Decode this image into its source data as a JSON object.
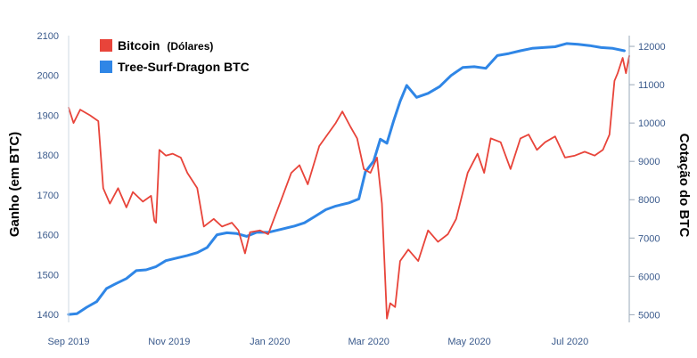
{
  "chart_data": {
    "type": "line",
    "title": "",
    "legend": {
      "placement": "top-left",
      "entries": [
        {
          "label": "Bitcoin",
          "sub": "(Dólares)",
          "color": "#e8443a"
        },
        {
          "label": "Tree-Surf-Dragon BTC",
          "sub": "",
          "color": "#2f86e6"
        }
      ]
    },
    "y_left": {
      "label": "Ganho (em BTC)",
      "range": [
        1380,
        2100
      ],
      "ticks": [
        "1400",
        "1500",
        "1600",
        "1700",
        "1800",
        "1900",
        "2000",
        "2100"
      ]
    },
    "y_right": {
      "label": "Cotação do BTC",
      "range": [
        4800,
        12280
      ],
      "ticks": [
        "5000",
        "6000",
        "7000",
        "8000",
        "9000",
        "10000",
        "11000",
        "12000"
      ]
    },
    "x_axis": {
      "range": [
        "2019-09-01",
        "2020-08-06"
      ],
      "ticks": [
        {
          "date": "2019-09-01",
          "label": "Sep 2019"
        },
        {
          "date": "2019-11-01",
          "label": "Nov 2019"
        },
        {
          "date": "2020-01-01",
          "label": "Jan 2020"
        },
        {
          "date": "2020-03-01",
          "label": "Mar 2020"
        },
        {
          "date": "2020-05-01",
          "label": "May 2020"
        },
        {
          "date": "2020-07-01",
          "label": "Jul 2020"
        }
      ]
    },
    "grid": false,
    "series": [
      {
        "name": "Tree-Surf-Dragon BTC",
        "axis": "left",
        "color": "#2f86e6",
        "points": [
          [
            "2019-09-01",
            1400
          ],
          [
            "2019-09-06",
            1402
          ],
          [
            "2019-09-12",
            1418
          ],
          [
            "2019-09-18",
            1432
          ],
          [
            "2019-09-24",
            1465
          ],
          [
            "2019-09-30",
            1478
          ],
          [
            "2019-10-06",
            1490
          ],
          [
            "2019-10-12",
            1510
          ],
          [
            "2019-10-18",
            1512
          ],
          [
            "2019-10-24",
            1520
          ],
          [
            "2019-10-30",
            1535
          ],
          [
            "2019-11-06",
            1542
          ],
          [
            "2019-11-12",
            1548
          ],
          [
            "2019-11-18",
            1555
          ],
          [
            "2019-11-24",
            1568
          ],
          [
            "2019-11-30",
            1600
          ],
          [
            "2019-12-06",
            1605
          ],
          [
            "2019-12-12",
            1603
          ],
          [
            "2019-12-18",
            1596
          ],
          [
            "2019-12-24",
            1606
          ],
          [
            "2019-12-31",
            1606
          ],
          [
            "2020-01-08",
            1614
          ],
          [
            "2020-01-16",
            1622
          ],
          [
            "2020-01-22",
            1630
          ],
          [
            "2020-01-28",
            1645
          ],
          [
            "2020-02-04",
            1663
          ],
          [
            "2020-02-10",
            1672
          ],
          [
            "2020-02-18",
            1680
          ],
          [
            "2020-02-24",
            1690
          ],
          [
            "2020-02-28",
            1758
          ],
          [
            "2020-03-04",
            1785
          ],
          [
            "2020-03-08",
            1840
          ],
          [
            "2020-03-12",
            1830
          ],
          [
            "2020-03-16",
            1885
          ],
          [
            "2020-03-20",
            1935
          ],
          [
            "2020-03-24",
            1975
          ],
          [
            "2020-03-30",
            1945
          ],
          [
            "2020-04-06",
            1955
          ],
          [
            "2020-04-13",
            1972
          ],
          [
            "2020-04-20",
            2000
          ],
          [
            "2020-04-27",
            2020
          ],
          [
            "2020-05-04",
            2022
          ],
          [
            "2020-05-11",
            2018
          ],
          [
            "2020-05-18",
            2050
          ],
          [
            "2020-05-25",
            2055
          ],
          [
            "2020-06-01",
            2062
          ],
          [
            "2020-06-08",
            2068
          ],
          [
            "2020-06-15",
            2070
          ],
          [
            "2020-06-22",
            2072
          ],
          [
            "2020-06-29",
            2080
          ],
          [
            "2020-07-06",
            2078
          ],
          [
            "2020-07-13",
            2075
          ],
          [
            "2020-07-20",
            2070
          ],
          [
            "2020-07-27",
            2068
          ],
          [
            "2020-08-03",
            2062
          ]
        ]
      },
      {
        "name": "Bitcoin",
        "axis": "right",
        "color": "#e8443a",
        "points": [
          [
            "2019-09-01",
            10400
          ],
          [
            "2019-09-04",
            10000
          ],
          [
            "2019-09-08",
            10350
          ],
          [
            "2019-09-14",
            10200
          ],
          [
            "2019-09-19",
            10050
          ],
          [
            "2019-09-22",
            8300
          ],
          [
            "2019-09-26",
            7900
          ],
          [
            "2019-10-01",
            8300
          ],
          [
            "2019-10-06",
            7800
          ],
          [
            "2019-10-10",
            8200
          ],
          [
            "2019-10-16",
            7950
          ],
          [
            "2019-10-21",
            8100
          ],
          [
            "2019-10-23",
            7450
          ],
          [
            "2019-10-24",
            7400
          ],
          [
            "2019-10-26",
            9300
          ],
          [
            "2019-10-30",
            9150
          ],
          [
            "2019-11-03",
            9200
          ],
          [
            "2019-11-08",
            9100
          ],
          [
            "2019-11-12",
            8700
          ],
          [
            "2019-11-18",
            8300
          ],
          [
            "2019-11-22",
            7300
          ],
          [
            "2019-11-28",
            7500
          ],
          [
            "2019-12-03",
            7300
          ],
          [
            "2019-12-09",
            7400
          ],
          [
            "2019-12-13",
            7200
          ],
          [
            "2019-12-17",
            6600
          ],
          [
            "2019-12-20",
            7150
          ],
          [
            "2019-12-26",
            7200
          ],
          [
            "2019-12-31",
            7100
          ],
          [
            "2020-01-08",
            8000
          ],
          [
            "2020-01-14",
            8700
          ],
          [
            "2020-01-19",
            8900
          ],
          [
            "2020-01-24",
            8400
          ],
          [
            "2020-01-31",
            9400
          ],
          [
            "2020-02-05",
            9700
          ],
          [
            "2020-02-10",
            10000
          ],
          [
            "2020-02-14",
            10300
          ],
          [
            "2020-02-19",
            9900
          ],
          [
            "2020-02-23",
            9600
          ],
          [
            "2020-02-27",
            8800
          ],
          [
            "2020-03-02",
            8700
          ],
          [
            "2020-03-06",
            9100
          ],
          [
            "2020-03-09",
            7900
          ],
          [
            "2020-03-12",
            4900
          ],
          [
            "2020-03-14",
            5300
          ],
          [
            "2020-03-17",
            5200
          ],
          [
            "2020-03-20",
            6400
          ],
          [
            "2020-03-25",
            6700
          ],
          [
            "2020-03-31",
            6400
          ],
          [
            "2020-04-06",
            7200
          ],
          [
            "2020-04-12",
            6900
          ],
          [
            "2020-04-18",
            7100
          ],
          [
            "2020-04-23",
            7500
          ],
          [
            "2020-04-30",
            8700
          ],
          [
            "2020-05-06",
            9200
          ],
          [
            "2020-05-10",
            8700
          ],
          [
            "2020-05-14",
            9600
          ],
          [
            "2020-05-20",
            9500
          ],
          [
            "2020-05-26",
            8800
          ],
          [
            "2020-06-01",
            9600
          ],
          [
            "2020-06-06",
            9700
          ],
          [
            "2020-06-11",
            9300
          ],
          [
            "2020-06-16",
            9500
          ],
          [
            "2020-06-22",
            9650
          ],
          [
            "2020-06-28",
            9100
          ],
          [
            "2020-07-04",
            9150
          ],
          [
            "2020-07-10",
            9250
          ],
          [
            "2020-07-16",
            9150
          ],
          [
            "2020-07-21",
            9300
          ],
          [
            "2020-07-25",
            9700
          ],
          [
            "2020-07-28",
            11100
          ],
          [
            "2020-07-30",
            11300
          ],
          [
            "2020-08-02",
            11700
          ],
          [
            "2020-08-04",
            11300
          ],
          [
            "2020-08-06",
            11750
          ]
        ]
      }
    ]
  }
}
